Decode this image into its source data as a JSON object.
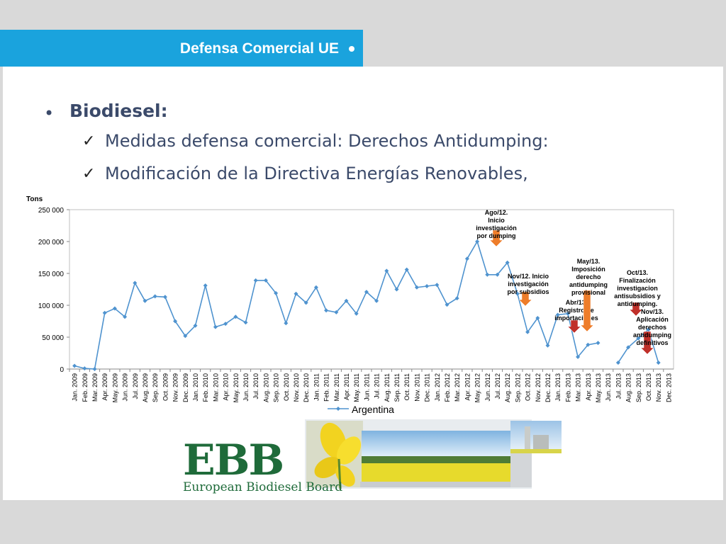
{
  "header": {
    "title": "Defensa Comercial UE"
  },
  "bullets": {
    "main": "Biodiesel:",
    "sub": [
      "Medidas defensa comercial: Derechos Antidumping:",
      "Modificación de la Directiva Energías Renovables,"
    ]
  },
  "icons": {
    "bullet": "bullet-dot-icon",
    "check": "checkmark-icon",
    "arrow": "arrow-down-icon"
  },
  "colors": {
    "header_bar": "#1aa3dd",
    "series_line": "#4f93cf",
    "arrow_orange": "#ee7d2a",
    "arrow_red": "#c0302a",
    "logo_green": "#1f6b3a"
  },
  "chart_data": {
    "type": "line",
    "ylabel": "Tons",
    "ylim": [
      0,
      250000
    ],
    "yticks": [
      "0",
      "50 000",
      "100 000",
      "150 000",
      "200 000",
      "250 000"
    ],
    "categories": [
      "Jan. 2009",
      "Feb. 2009",
      "Mar. 2009",
      "Apr. 2009",
      "May. 2009",
      "Jun. 2009",
      "Jul. 2009",
      "Aug. 2009",
      "Sep. 2009",
      "Oct. 2009",
      "Nov. 2009",
      "Dec. 2009",
      "Jan. 2010",
      "Feb. 2010",
      "Mar. 2010",
      "Apr. 2010",
      "May. 2010",
      "Jun. 2010",
      "Jul. 2010",
      "Aug. 2010",
      "Sep. 2010",
      "Oct. 2010",
      "Nov. 2010",
      "Dec. 2010",
      "Jan. 2011",
      "Feb. 2011",
      "Mar. 2011",
      "Apr. 2011",
      "May. 2011",
      "Jun. 2011",
      "Jul. 2011",
      "Aug. 2011",
      "Sep. 2011",
      "Oct. 2011",
      "Nov. 2011",
      "Dec. 2011",
      "Jan. 2012",
      "Feb. 2012",
      "Mar. 2012",
      "Apr. 2012",
      "May. 2012",
      "Jun. 2012",
      "Jul. 2012",
      "Aug. 2012",
      "Sep. 2012",
      "Oct. 2012",
      "Nov. 2012",
      "Dec. 2012",
      "Jan. 2013",
      "Feb. 2013",
      "Mar. 2013",
      "Apr. 2013",
      "May. 2013",
      "Jun. 2013",
      "Jul. 2013",
      "Aug. 2013",
      "Sep. 2013",
      "Oct. 2013",
      "Nov. 2013",
      "Dec. 2013"
    ],
    "series": [
      {
        "name": "Argentina",
        "values": [
          5000,
          1000,
          0,
          88000,
          95000,
          82000,
          135000,
          107000,
          114000,
          113000,
          75000,
          52000,
          68000,
          131000,
          66000,
          71000,
          82000,
          73000,
          139000,
          139000,
          119000,
          72000,
          118000,
          104000,
          128000,
          92000,
          89000,
          107000,
          87000,
          121000,
          107000,
          154000,
          125000,
          156000,
          128000,
          130000,
          132000,
          101000,
          111000,
          173000,
          200000,
          148000,
          148000,
          167000,
          118000,
          58000,
          80000,
          37000,
          85000,
          87000,
          19000,
          38000,
          41000,
          null,
          10000,
          34000,
          48000,
          62000,
          10000,
          null
        ]
      }
    ],
    "annotations": [
      {
        "text": [
          "Ago/12.",
          "Inicio",
          "investigación",
          "por dumping"
        ],
        "arrow": "orange"
      },
      {
        "text": [
          "Nov/12. Inicio",
          "investigación",
          "por subsidios"
        ],
        "arrow": "orange"
      },
      {
        "text": [
          "Abr/13.",
          "Registro de",
          "importaciones"
        ],
        "arrow": "red"
      },
      {
        "text": [
          "May/13.",
          "Imposición",
          "derecho",
          "antidumping",
          "provisional"
        ],
        "arrow": "orange"
      },
      {
        "text": [
          "Oct/13.",
          "Finalización",
          "investigacion",
          "antisubsidios y",
          "antidumping."
        ],
        "arrow": "red"
      },
      {
        "text": [
          "Nov/13.",
          "Aplicación",
          "derechos",
          "antidumping",
          "definitivos"
        ],
        "arrow": "red"
      }
    ]
  },
  "logo": {
    "big": "EBB",
    "sub": "European Biodiesel Board"
  }
}
